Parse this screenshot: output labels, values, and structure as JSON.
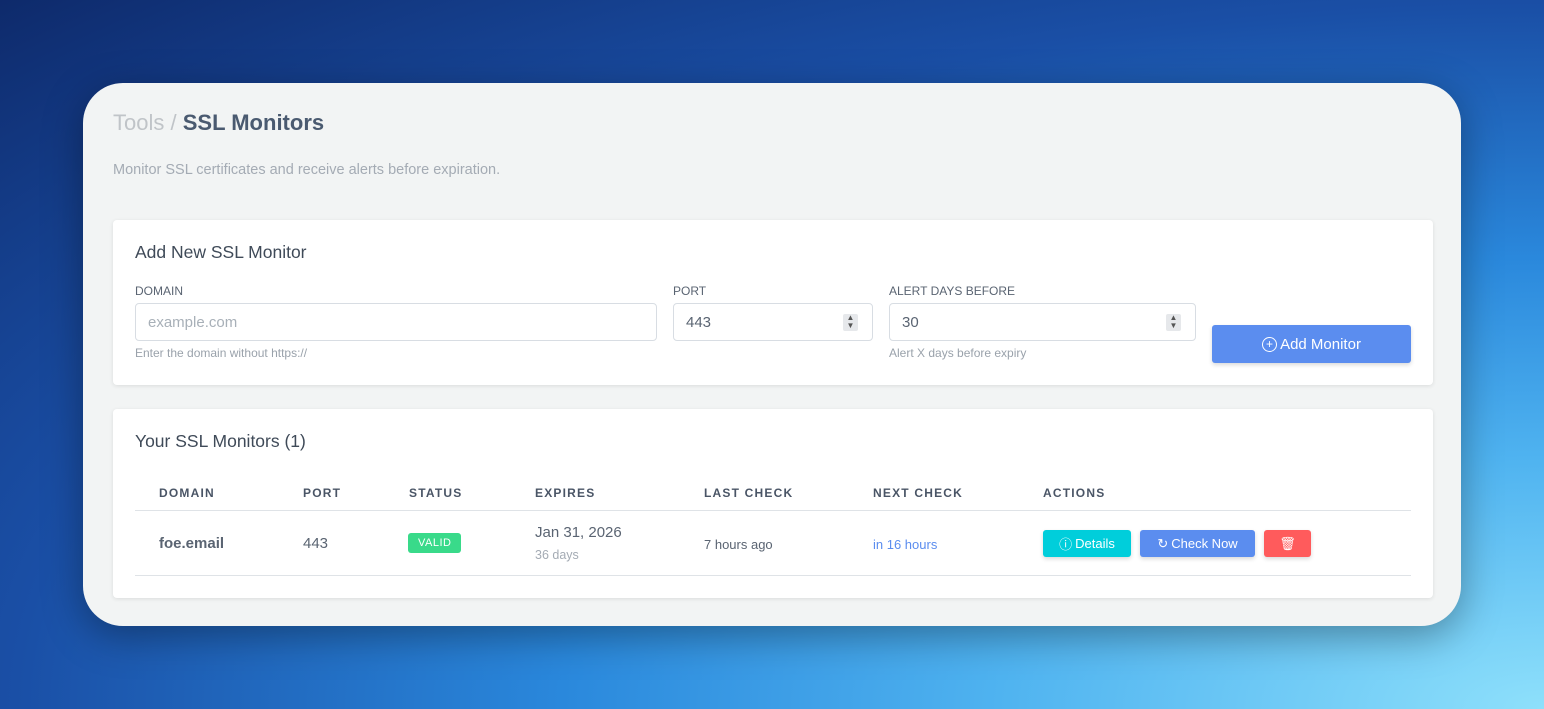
{
  "header": {
    "breadcrumb_parent": "Tools",
    "separator": "/",
    "title": "SSL Monitors",
    "subtitle": "Monitor SSL certificates and receive alerts before expiration."
  },
  "add_form": {
    "title": "Add New SSL Monitor",
    "domain": {
      "label": "DOMAIN",
      "placeholder": "example.com",
      "value": "",
      "hint": "Enter the domain without https://"
    },
    "port": {
      "label": "PORT",
      "value": "443"
    },
    "alert": {
      "label": "ALERT DAYS BEFORE",
      "value": "30",
      "hint": "Alert X days before expiry"
    },
    "submit_label": "Add Monitor"
  },
  "monitors": {
    "title": "Your SSL Monitors (1)",
    "columns": [
      "DOMAIN",
      "PORT",
      "STATUS",
      "EXPIRES",
      "LAST CHECK",
      "NEXT CHECK",
      "ACTIONS"
    ],
    "rows": [
      {
        "domain": "foe.email",
        "port": "443",
        "status": "VALID",
        "expires": "Jan 31, 2026",
        "expires_in": "36 days",
        "last_check": "7 hours ago",
        "next_check": "in 16 hours",
        "details_label": "Details",
        "check_label": "Check Now"
      }
    ]
  },
  "colors": {
    "primary": "#5b8def",
    "info": "#00cedb",
    "danger": "#ff5b5c",
    "success": "#39da8a"
  }
}
